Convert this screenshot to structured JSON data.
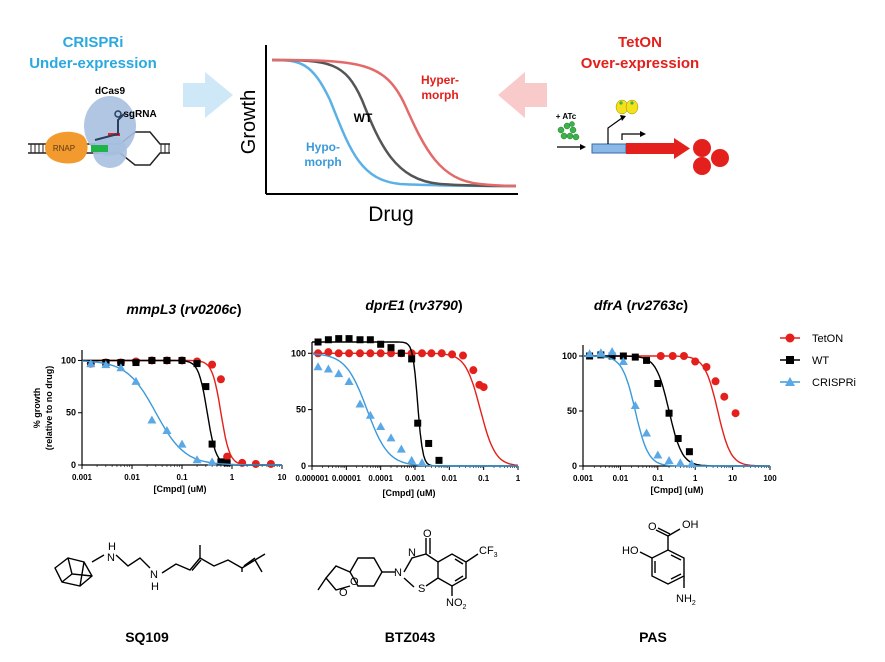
{
  "top": {
    "crispri_title_1": "CRISPRi",
    "crispri_title_2": "Under-expression",
    "tet_title_1": "TetON",
    "tet_title_2": "Over-expression",
    "dcas9_label": "dCas9",
    "sgrna_label": "sgRNA",
    "rnap_label": "RNAP",
    "atc_label": "+ ATc",
    "schematic": {
      "ylabel": "Growth",
      "xlabel": "Drug",
      "label_wt": "WT",
      "label_hypo_1": "Hypo-",
      "label_hypo_2": "morph",
      "label_hyper_1": "Hyper-",
      "label_hyper_2": "morph"
    }
  },
  "colors": {
    "tet": "#e3201b",
    "wt": "#000000",
    "crispri": "#3a9ad9",
    "arrow_blue": "#cfe8f7",
    "arrow_red": "#f9caca",
    "crispri_text": "#29a9e0"
  },
  "legend": {
    "tet": "TetON",
    "wt": "WT",
    "crispri": "CRISPRi"
  },
  "chart_data": [
    {
      "type": "scatter",
      "title_gene": "mmpL3",
      "title_locus": "rv0206c",
      "ylabel_1": "% growth",
      "ylabel_2": "(relative to no drug)",
      "xlabel": "[Cmpd] (uM)",
      "xscale": "log",
      "xlim": [
        0.001,
        10
      ],
      "ylim": [
        0,
        110
      ],
      "xticks": [
        "0.001",
        "0.01",
        "0.1",
        "1",
        "10"
      ],
      "yticks": [
        "0",
        "50",
        "100"
      ],
      "series": [
        {
          "key": "tet",
          "points": [
            [
              0.0015,
              97
            ],
            [
              0.003,
              98
            ],
            [
              0.006,
              98
            ],
            [
              0.012,
              99
            ],
            [
              0.025,
              100
            ],
            [
              0.05,
              100
            ],
            [
              0.1,
              100
            ],
            [
              0.2,
              99
            ],
            [
              0.4,
              96
            ],
            [
              0.6,
              82
            ],
            [
              0.8,
              8
            ],
            [
              1.6,
              2
            ],
            [
              3,
              1
            ],
            [
              6,
              1
            ]
          ],
          "fit": {
            "ec50": 0.6,
            "hill": 5
          }
        },
        {
          "key": "wt",
          "points": [
            [
              0.0015,
              97
            ],
            [
              0.003,
              98
            ],
            [
              0.006,
              98
            ],
            [
              0.012,
              98
            ],
            [
              0.025,
              100
            ],
            [
              0.05,
              100
            ],
            [
              0.1,
              100
            ],
            [
              0.2,
              97
            ],
            [
              0.3,
              75
            ],
            [
              0.4,
              20
            ],
            [
              0.6,
              3
            ],
            [
              0.8,
              2
            ]
          ],
          "fit": {
            "ec50": 0.32,
            "hill": 5
          }
        },
        {
          "key": "crispri",
          "points": [
            [
              0.0015,
              97
            ],
            [
              0.003,
              96
            ],
            [
              0.006,
              93
            ],
            [
              0.012,
              80
            ],
            [
              0.025,
              43
            ],
            [
              0.05,
              33
            ],
            [
              0.1,
              20
            ],
            [
              0.2,
              5
            ],
            [
              0.4,
              3
            ]
          ],
          "fit": {
            "ec50": 0.03,
            "hill": 1.5
          }
        }
      ]
    },
    {
      "type": "scatter",
      "title_gene": "dprE1",
      "title_locus": "rv3790",
      "xlabel": "[Cmpd] (uM)",
      "xscale": "log",
      "xlim": [
        1e-06,
        1
      ],
      "ylim": [
        0,
        110
      ],
      "xticks": [
        "0.000001",
        "0.00001",
        "0.0001",
        "0.001",
        "0.01",
        "0.1",
        "1"
      ],
      "yticks": [
        "0",
        "50",
        "100"
      ],
      "series": [
        {
          "key": "tet",
          "points": [
            [
              1.5e-06,
              100
            ],
            [
              3e-06,
              101
            ],
            [
              6e-06,
              100
            ],
            [
              1.2e-05,
              100
            ],
            [
              2.5e-05,
              100
            ],
            [
              5e-05,
              100
            ],
            [
              0.0001,
              100
            ],
            [
              0.0002,
              100
            ],
            [
              0.0004,
              100
            ],
            [
              0.0008,
              100
            ],
            [
              0.0016,
              100
            ],
            [
              0.003,
              100
            ],
            [
              0.006,
              100
            ],
            [
              0.012,
              99
            ],
            [
              0.025,
              98
            ],
            [
              0.05,
              85
            ],
            [
              0.075,
              72
            ],
            [
              0.1,
              70
            ]
          ],
          "fit": {
            "ec50": 0.08,
            "hill": 2
          }
        },
        {
          "key": "wt",
          "points": [
            [
              1.5e-06,
              110
            ],
            [
              3e-06,
              112
            ],
            [
              6e-06,
              113
            ],
            [
              1.2e-05,
              113
            ],
            [
              2.5e-05,
              112
            ],
            [
              5e-05,
              112
            ],
            [
              0.0001,
              108
            ],
            [
              0.0002,
              105
            ],
            [
              0.0004,
              100
            ],
            [
              0.0008,
              95
            ],
            [
              0.0012,
              38
            ],
            [
              0.0025,
              20
            ],
            [
              0.005,
              5
            ]
          ],
          "fit": {
            "ec50": 0.0012,
            "hill": 6
          }
        },
        {
          "key": "crispri",
          "points": [
            [
              1.5e-06,
              88
            ],
            [
              3e-06,
              86
            ],
            [
              6e-06,
              82
            ],
            [
              1.2e-05,
              75
            ],
            [
              2.5e-05,
              55
            ],
            [
              5e-05,
              45
            ],
            [
              0.0001,
              35
            ],
            [
              0.0002,
              25
            ],
            [
              0.0004,
              15
            ],
            [
              0.0008,
              5
            ],
            [
              0.0016,
              3
            ]
          ],
          "fit": {
            "ec50": 4e-05,
            "hill": 1.4
          }
        }
      ]
    },
    {
      "type": "scatter",
      "title_gene": "dfrA",
      "title_locus": "rv2763c",
      "xlabel": "[Cmpd] (uM)",
      "xscale": "log",
      "xlim": [
        0.001,
        100
      ],
      "ylim": [
        0,
        110
      ],
      "xticks": [
        "0.001",
        "0.01",
        "0.1",
        "1",
        "10",
        "100"
      ],
      "yticks": [
        "0",
        "50",
        "100"
      ],
      "series": [
        {
          "key": "tet",
          "points": [
            [
              0.12,
              100
            ],
            [
              0.25,
              100
            ],
            [
              0.5,
              100
            ],
            [
              1,
              95
            ],
            [
              2,
              90
            ],
            [
              3.5,
              77
            ],
            [
              6,
              63
            ],
            [
              12,
              48
            ]
          ],
          "fit": {
            "ec50": 4,
            "hill": 2.5
          }
        },
        {
          "key": "wt",
          "points": [
            [
              0.0015,
              100
            ],
            [
              0.003,
              101
            ],
            [
              0.006,
              100
            ],
            [
              0.012,
              100
            ],
            [
              0.025,
              99
            ],
            [
              0.05,
              96
            ],
            [
              0.1,
              75
            ],
            [
              0.2,
              48
            ],
            [
              0.35,
              25
            ],
            [
              0.7,
              13
            ]
          ],
          "fit": {
            "ec50": 0.2,
            "hill": 2.5
          }
        },
        {
          "key": "crispri",
          "points": [
            [
              0.0015,
              102
            ],
            [
              0.003,
              103
            ],
            [
              0.006,
              104
            ],
            [
              0.012,
              95
            ],
            [
              0.025,
              55
            ],
            [
              0.05,
              30
            ],
            [
              0.1,
              10
            ],
            [
              0.2,
              5
            ],
            [
              0.4,
              3
            ],
            [
              0.8,
              2
            ]
          ],
          "fit": {
            "ec50": 0.025,
            "hill": 2.5
          }
        }
      ]
    }
  ],
  "compounds": {
    "sq109": "SQ109",
    "btz043": "BTZ043",
    "pas": "PAS",
    "sq109_nh_top": "H",
    "sq109_n_top": "N",
    "sq109_n_bot": "N",
    "sq109_h_bot": "H",
    "btz_o_top": "O",
    "btz_n1": "N",
    "btz_n2": "N",
    "btz_s": "S",
    "btz_cf3": "CF",
    "btz_cf3_sub": "3",
    "btz_no2": "NO",
    "btz_no2_sub": "2",
    "btz_o1": "O",
    "btz_o2": "O",
    "pas_o": "O",
    "pas_oh_acid": "OH",
    "pas_ho": "HO",
    "pas_nh2": "NH",
    "pas_nh2_sub": "2"
  }
}
